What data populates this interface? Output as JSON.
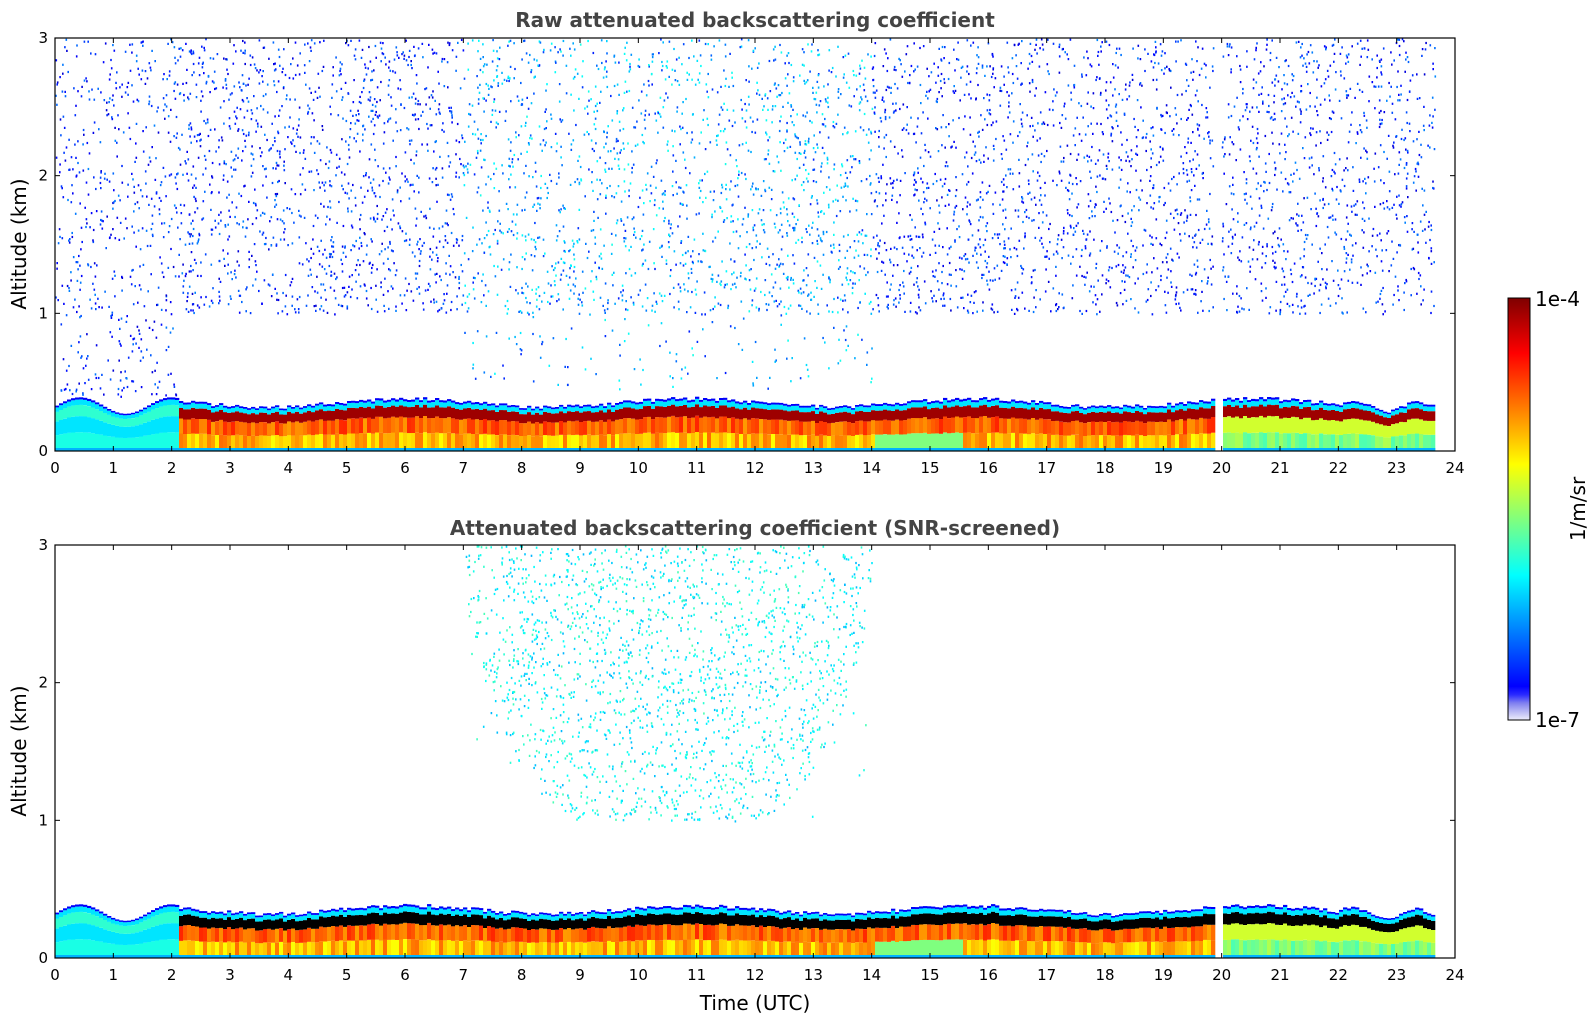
{
  "chart_data": [
    {
      "type": "heatmap",
      "title": "Raw attenuated backscattering coefficient",
      "xlabel": "",
      "ylabel": "Altitude (km)",
      "xlim": [
        0,
        24
      ],
      "ylim": [
        0,
        3
      ],
      "xticks": [
        "0",
        "1",
        "2",
        "3",
        "4",
        "5",
        "6",
        "7",
        "8",
        "9",
        "10",
        "11",
        "12",
        "13",
        "14",
        "15",
        "16",
        "17",
        "18",
        "19",
        "20",
        "21",
        "22",
        "23",
        "24"
      ],
      "yticks": [
        "0",
        "1",
        "2",
        "3"
      ],
      "data_end_hour": 23.65,
      "gaps_hours": [
        [
          19.85,
          20.0
        ]
      ],
      "boundary_layer_top_km": 0.4,
      "aerosol_max_altitude_km": 0.45,
      "noise_layer_above_km": 1.0,
      "snr_screened": false
    },
    {
      "type": "heatmap",
      "title": "Attenuated backscattering coefficient (SNR-screened)",
      "xlabel": "Time (UTC)",
      "ylabel": "Altitude (km)",
      "xlim": [
        0,
        24
      ],
      "ylim": [
        0,
        3
      ],
      "xticks": [
        "0",
        "1",
        "2",
        "3",
        "4",
        "5",
        "6",
        "7",
        "8",
        "9",
        "10",
        "11",
        "12",
        "13",
        "14",
        "15",
        "16",
        "17",
        "18",
        "19",
        "20",
        "21",
        "22",
        "23",
        "24"
      ],
      "yticks": [
        "0",
        "1",
        "2",
        "3"
      ],
      "data_end_hour": 23.65,
      "gaps_hours": [
        [
          19.85,
          20.0
        ]
      ],
      "boundary_layer_top_km": 0.4,
      "aerosol_max_altitude_km": 0.45,
      "snr_screened": true
    }
  ],
  "colorbar": {
    "max_label": "1e-4",
    "min_label": "1e-7",
    "units": "1/m/sr",
    "scale": "log",
    "range": [
      1e-07,
      0.0001
    ],
    "colormap": [
      "#00007f",
      "#0000ff",
      "#007fff",
      "#00ffff",
      "#7fff7f",
      "#ffff00",
      "#ff7f00",
      "#ff0000",
      "#7f0000"
    ]
  }
}
